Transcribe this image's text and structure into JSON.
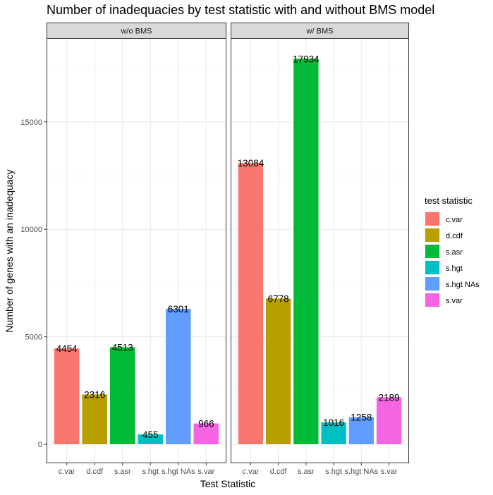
{
  "chart_data": {
    "type": "bar",
    "title": "Number of inadequacies by test statistic with and without BMS model",
    "xlabel": "Test Statistic",
    "ylabel": "Number of genes with an inadequacy",
    "ylim": [
      0,
      18600
    ],
    "yticks": [
      0,
      5000,
      10000,
      15000
    ],
    "grid": true,
    "legend": {
      "title": "test statistic",
      "position": "right",
      "entries": [
        {
          "label": "c.var",
          "color": "#F8766D"
        },
        {
          "label": "d.cdf",
          "color": "#B79F00"
        },
        {
          "label": "s.asr",
          "color": "#00BA38"
        },
        {
          "label": "s.hgt",
          "color": "#00BFC4"
        },
        {
          "label": "s.hgt NAs",
          "color": "#619CFF"
        },
        {
          "label": "s.var",
          "color": "#F564E3"
        }
      ]
    },
    "panels": [
      {
        "name": "w/o BMS",
        "categories": [
          "c.var",
          "d.cdf",
          "s.asr",
          "s.hgt",
          "s.hgt NAs",
          "s.var"
        ],
        "values": [
          4454,
          2316,
          4513,
          455,
          6301,
          966
        ]
      },
      {
        "name": "w/ BMS",
        "categories": [
          "c.var",
          "d.cdf",
          "s.asr",
          "s.hgt",
          "s.hgt NAs",
          "s.var"
        ],
        "values": [
          13084,
          6778,
          17934,
          1016,
          1258,
          2189
        ]
      }
    ]
  }
}
